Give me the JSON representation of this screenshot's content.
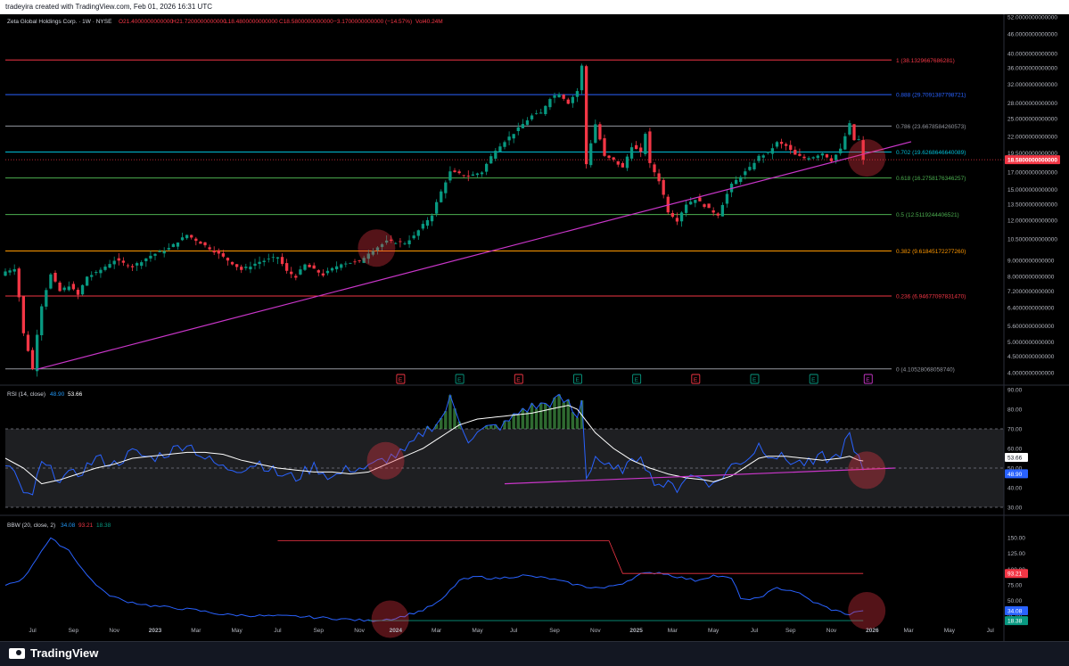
{
  "header": {
    "created_text": "tradeyira created with TradingView.com, Feb 01, 2026 16:31 UTC"
  },
  "footer": {
    "brand": "TradingView"
  },
  "chart_data": [
    {
      "type": "candlestick",
      "legend": {
        "symbol": "Zeta Global Holdings Corp. · 1W · NYSE",
        "open": "O21.4000000000000",
        "high": "H21.7200000000000",
        "low": "L18.4800000000000",
        "close": "C18.5800000000000",
        "change": "−3.1700000000000 (−14.57%)",
        "volume": "Vol40.24M"
      },
      "scale": "log",
      "price_axis_labels": [
        "52.0000000000000",
        "46.0000000000000",
        "40.0000000000000",
        "36.0000000000000",
        "32.0000000000000",
        "28.0000000000000",
        "25.0000000000000",
        "22.0000000000000",
        "19.5000000000000",
        "17.0000000000000",
        "15.0000000000000",
        "13.5000000000000",
        "12.0000000000000",
        "10.5000000000000",
        "9.0000000000000",
        "8.0000000000000",
        "7.2000000000000",
        "6.4000000000000",
        "5.6000000000000",
        "5.0000000000000",
        "4.5000000000000",
        "4.0000000000000"
      ],
      "price_axis_values": [
        52,
        46,
        40,
        36,
        32,
        28,
        25,
        22,
        19.5,
        17,
        15,
        13.5,
        12,
        10.5,
        9,
        8,
        7.2,
        6.4,
        5.6,
        5.0,
        4.5,
        4.0
      ],
      "last_price": {
        "label": "18.5800000000000",
        "value": 18.58,
        "color": "#f23645"
      },
      "fib_levels": [
        {
          "label": "1 (38.1329667686281)",
          "value": 38.13,
          "color": "#f23645"
        },
        {
          "label": "0.888 (29.7091387798721)",
          "value": 29.71,
          "color": "#2962ff"
        },
        {
          "label": "0.786 (23.6678584260573)",
          "value": 23.67,
          "color": "#9598a1"
        },
        {
          "label": "0.702 (19.6268646640089)",
          "value": 19.63,
          "color": "#00bcd4"
        },
        {
          "label": "0.618 (16.2758176346257)",
          "value": 16.28,
          "color": "#4caf50"
        },
        {
          "label": "0.5 (12.5119244406521)",
          "value": 12.51,
          "color": "#4caf50"
        },
        {
          "label": "0.382 (9.61845172277260)",
          "value": 9.62,
          "color": "#ff9800"
        },
        {
          "label": "0.236 (6.94677097831470)",
          "value": 6.95,
          "color": "#f23645"
        },
        {
          "label": "0 (4.10528068058740)",
          "value": 4.11,
          "color": "#9598a1"
        }
      ],
      "trendline": {
        "from": {
          "week": 7,
          "price": 4.1
        },
        "to": {
          "week": 187,
          "price": 19.0
        },
        "color": "#c936c9"
      },
      "earnings_markers": [
        {
          "week": 87,
          "label": "E",
          "color": "#f23645"
        },
        {
          "week": 100,
          "label": "E",
          "color": "#089981"
        },
        {
          "week": 113,
          "label": "E",
          "color": "#f23645"
        },
        {
          "week": 126,
          "label": "E",
          "color": "#089981"
        },
        {
          "week": 139,
          "label": "E",
          "color": "#089981"
        },
        {
          "week": 152,
          "label": "E",
          "color": "#f23645"
        },
        {
          "week": 165,
          "label": "E",
          "color": "#089981"
        },
        {
          "week": 178,
          "label": "E",
          "color": "#089981"
        },
        {
          "week": 190,
          "label": "E",
          "color": "#c936c9"
        }
      ],
      "highlight_weeks": [
        81,
        189
      ],
      "keypoints": [
        [
          0,
          8.3
        ],
        [
          2,
          8.5
        ],
        [
          4,
          5.3
        ],
        [
          6,
          4.1
        ],
        [
          8,
          6.5
        ],
        [
          10,
          8.1
        ],
        [
          12,
          7.2
        ],
        [
          14,
          7.5
        ],
        [
          16,
          7.0
        ],
        [
          18,
          8.0
        ],
        [
          20,
          8.2
        ],
        [
          24,
          9.0
        ],
        [
          28,
          8.6
        ],
        [
          32,
          9.3
        ],
        [
          36,
          9.8
        ],
        [
          40,
          10.8
        ],
        [
          44,
          10.0
        ],
        [
          48,
          9.2
        ],
        [
          52,
          8.4
        ],
        [
          56,
          8.9
        ],
        [
          60,
          9.2
        ],
        [
          62,
          8.3
        ],
        [
          64,
          8.0
        ],
        [
          66,
          8.7
        ],
        [
          70,
          8.1
        ],
        [
          74,
          8.8
        ],
        [
          78,
          8.9
        ],
        [
          80,
          9.5
        ],
        [
          84,
          10.3
        ],
        [
          88,
          10.2
        ],
        [
          90,
          10.7
        ],
        [
          94,
          12.5
        ],
        [
          98,
          17.0
        ],
        [
          102,
          16.5
        ],
        [
          105,
          17.0
        ],
        [
          108,
          20.0
        ],
        [
          112,
          22.5
        ],
        [
          116,
          25.5
        ],
        [
          118,
          26.0
        ],
        [
          120,
          29.0
        ],
        [
          122,
          30.0
        ],
        [
          124,
          28.0
        ],
        [
          126,
          30.5
        ],
        [
          127,
          36.5
        ],
        [
          128,
          18.0
        ],
        [
          130,
          24.0
        ],
        [
          132,
          19.0
        ],
        [
          134,
          18.5
        ],
        [
          136,
          17.5
        ],
        [
          138,
          20.5
        ],
        [
          140,
          19.5
        ],
        [
          141,
          22.5
        ],
        [
          142,
          18.0
        ],
        [
          144,
          16.0
        ],
        [
          146,
          12.8
        ],
        [
          148,
          12.0
        ],
        [
          150,
          13.5
        ],
        [
          152,
          14.0
        ],
        [
          155,
          13.0
        ],
        [
          157,
          12.5
        ],
        [
          160,
          15.5
        ],
        [
          162,
          16.5
        ],
        [
          164,
          17.5
        ],
        [
          166,
          19.0
        ],
        [
          168,
          19.5
        ],
        [
          170,
          21.0
        ],
        [
          172,
          20.5
        ],
        [
          174,
          19.2
        ],
        [
          176,
          18.8
        ],
        [
          178,
          19.0
        ],
        [
          180,
          19.5
        ],
        [
          182,
          18.5
        ],
        [
          184,
          20.0
        ],
        [
          186,
          24.0
        ],
        [
          187,
          21.4
        ],
        [
          188,
          21.5
        ],
        [
          189,
          18.58
        ]
      ]
    },
    {
      "type": "line",
      "legend": {
        "name": "RSI (14, close)",
        "v1": "48.90",
        "v2": "53.66"
      },
      "axis_labels": [
        "90.00",
        "80.00",
        "70.00",
        "60.00",
        "50.00",
        "40.00",
        "30.00"
      ],
      "axis_values": [
        90,
        80,
        70,
        60,
        50,
        40,
        30
      ],
      "current_labels": [
        {
          "label": "53.66",
          "value": 53.66,
          "bg": "#ffffff",
          "fg": "#131722"
        },
        {
          "label": "48.90",
          "value": 48.9,
          "bg": "#2962ff",
          "fg": "#ffffff"
        }
      ],
      "band": [
        30,
        70
      ],
      "rsi_keypoints": [
        [
          0,
          52
        ],
        [
          2,
          48
        ],
        [
          4,
          35
        ],
        [
          6,
          37
        ],
        [
          8,
          52
        ],
        [
          12,
          45
        ],
        [
          16,
          47
        ],
        [
          20,
          55
        ],
        [
          24,
          52
        ],
        [
          28,
          58
        ],
        [
          32,
          55
        ],
        [
          36,
          58
        ],
        [
          40,
          63
        ],
        [
          44,
          55
        ],
        [
          48,
          50
        ],
        [
          52,
          50
        ],
        [
          56,
          53
        ],
        [
          60,
          47
        ],
        [
          64,
          45
        ],
        [
          68,
          51
        ],
        [
          72,
          45
        ],
        [
          76,
          50
        ],
        [
          80,
          50
        ],
        [
          84,
          55
        ],
        [
          88,
          58
        ],
        [
          92,
          68
        ],
        [
          96,
          75
        ],
        [
          98,
          85
        ],
        [
          102,
          65
        ],
        [
          106,
          70
        ],
        [
          110,
          72
        ],
        [
          114,
          80
        ],
        [
          118,
          82
        ],
        [
          122,
          85
        ],
        [
          124,
          83
        ],
        [
          126,
          75
        ],
        [
          127,
          86
        ],
        [
          128,
          45
        ],
        [
          130,
          56
        ],
        [
          134,
          48
        ],
        [
          138,
          52
        ],
        [
          140,
          58
        ],
        [
          142,
          46
        ],
        [
          144,
          42
        ],
        [
          148,
          40
        ],
        [
          150,
          46
        ],
        [
          154,
          45
        ],
        [
          156,
          41
        ],
        [
          160,
          51
        ],
        [
          164,
          56
        ],
        [
          166,
          62
        ],
        [
          168,
          58
        ],
        [
          170,
          56
        ],
        [
          174,
          53
        ],
        [
          178,
          52
        ],
        [
          180,
          56
        ],
        [
          182,
          54
        ],
        [
          184,
          58
        ],
        [
          186,
          67
        ],
        [
          187,
          57
        ],
        [
          188,
          54
        ],
        [
          189,
          48.9
        ]
      ],
      "ma_keypoints": [
        [
          0,
          55
        ],
        [
          4,
          50
        ],
        [
          8,
          42
        ],
        [
          12,
          44
        ],
        [
          16,
          47
        ],
        [
          20,
          50
        ],
        [
          24,
          52
        ],
        [
          28,
          55
        ],
        [
          32,
          56
        ],
        [
          36,
          57
        ],
        [
          40,
          58
        ],
        [
          44,
          58
        ],
        [
          48,
          57
        ],
        [
          52,
          54
        ],
        [
          56,
          52
        ],
        [
          60,
          50
        ],
        [
          64,
          49
        ],
        [
          68,
          48
        ],
        [
          72,
          48
        ],
        [
          76,
          47
        ],
        [
          80,
          48
        ],
        [
          84,
          52
        ],
        [
          88,
          56
        ],
        [
          92,
          60
        ],
        [
          96,
          66
        ],
        [
          100,
          72
        ],
        [
          104,
          75
        ],
        [
          108,
          76
        ],
        [
          112,
          77
        ],
        [
          116,
          78
        ],
        [
          120,
          80
        ],
        [
          124,
          82
        ],
        [
          126,
          80
        ],
        [
          128,
          74
        ],
        [
          130,
          68
        ],
        [
          134,
          60
        ],
        [
          138,
          54
        ],
        [
          142,
          50
        ],
        [
          146,
          47
        ],
        [
          150,
          45
        ],
        [
          154,
          44
        ],
        [
          156,
          43
        ],
        [
          160,
          46
        ],
        [
          164,
          52
        ],
        [
          166,
          55
        ],
        [
          168,
          56
        ],
        [
          172,
          56
        ],
        [
          176,
          55
        ],
        [
          180,
          54
        ],
        [
          184,
          55
        ],
        [
          186,
          56
        ],
        [
          188,
          54
        ],
        [
          189,
          53.66
        ]
      ],
      "trendline": {
        "from": {
          "week": 110,
          "rsi": 42
        },
        "to": {
          "week": 196,
          "rsi": 50
        },
        "color": "#c936c9"
      },
      "highlight_weeks": [
        83,
        189
      ]
    },
    {
      "type": "line",
      "legend": {
        "name": "BBW (20, close, 2)",
        "v1": "34.08",
        "v2": "93.21",
        "v3": "18.38"
      },
      "axis_labels": [
        "150.00",
        "125.00",
        "100.00",
        "75.00",
        "50.00",
        "25.00"
      ],
      "axis_values": [
        150,
        125,
        100,
        75,
        50,
        25
      ],
      "current_labels": [
        {
          "label": "93.21",
          "value": 93.21,
          "bg": "#f23645",
          "fg": "#ffffff"
        },
        {
          "label": "34.08",
          "value": 34.08,
          "bg": "#2962ff",
          "fg": "#ffffff"
        },
        {
          "label": "18.38",
          "value": 18.38,
          "bg": "#089981",
          "fg": "#ffffff"
        }
      ],
      "bbw_keypoints": [
        [
          0,
          75
        ],
        [
          4,
          85
        ],
        [
          8,
          130
        ],
        [
          10,
          148
        ],
        [
          14,
          130
        ],
        [
          18,
          90
        ],
        [
          22,
          62
        ],
        [
          26,
          50
        ],
        [
          32,
          42
        ],
        [
          38,
          38
        ],
        [
          42,
          35
        ],
        [
          48,
          28
        ],
        [
          56,
          26
        ],
        [
          64,
          25
        ],
        [
          72,
          22
        ],
        [
          80,
          18
        ],
        [
          86,
          22
        ],
        [
          92,
          35
        ],
        [
          96,
          50
        ],
        [
          100,
          82
        ],
        [
          104,
          88
        ],
        [
          108,
          85
        ],
        [
          114,
          90
        ],
        [
          120,
          85
        ],
        [
          124,
          78
        ],
        [
          128,
          72
        ],
        [
          132,
          70
        ],
        [
          136,
          78
        ],
        [
          140,
          92
        ],
        [
          144,
          95
        ],
        [
          148,
          88
        ],
        [
          152,
          82
        ],
        [
          156,
          90
        ],
        [
          160,
          85
        ],
        [
          162,
          55
        ],
        [
          164,
          50
        ],
        [
          166,
          55
        ],
        [
          170,
          70
        ],
        [
          174,
          65
        ],
        [
          178,
          48
        ],
        [
          182,
          36
        ],
        [
          186,
          28
        ],
        [
          188,
          34
        ],
        [
          189,
          34.08
        ]
      ],
      "highest": {
        "from_week": 60,
        "to_week": 133,
        "value": 145,
        "drop_to": 93.21,
        "drop_week": 136,
        "end_week": 189,
        "color": "#f23645"
      },
      "lowest": {
        "from_week": 80,
        "to_week": 189,
        "value": 18.38,
        "color": "#089981"
      },
      "highlight_weeks": [
        84,
        189
      ]
    }
  ],
  "time_axis": [
    {
      "label": "Jul",
      "week": 6
    },
    {
      "label": "Sep",
      "week": 15
    },
    {
      "label": "Nov",
      "week": 24
    },
    {
      "label": "2023",
      "week": 33
    },
    {
      "label": "Mar",
      "week": 42
    },
    {
      "label": "May",
      "week": 51
    },
    {
      "label": "Jul",
      "week": 60
    },
    {
      "label": "Sep",
      "week": 69
    },
    {
      "label": "Nov",
      "week": 78
    },
    {
      "label": "2024",
      "week": 86
    },
    {
      "label": "Mar",
      "week": 95
    },
    {
      "label": "May",
      "week": 104
    },
    {
      "label": "Jul",
      "week": 112
    },
    {
      "label": "Sep",
      "week": 121
    },
    {
      "label": "Nov",
      "week": 130
    },
    {
      "label": "2025",
      "week": 139
    },
    {
      "label": "Mar",
      "week": 147
    },
    {
      "label": "May",
      "week": 156
    },
    {
      "label": "Jul",
      "week": 165
    },
    {
      "label": "Sep",
      "week": 173
    },
    {
      "label": "Nov",
      "week": 182
    },
    {
      "label": "2026",
      "week": 191
    },
    {
      "label": "Mar",
      "week": 199
    },
    {
      "label": "May",
      "week": 208
    },
    {
      "label": "Jul",
      "week": 217
    }
  ]
}
